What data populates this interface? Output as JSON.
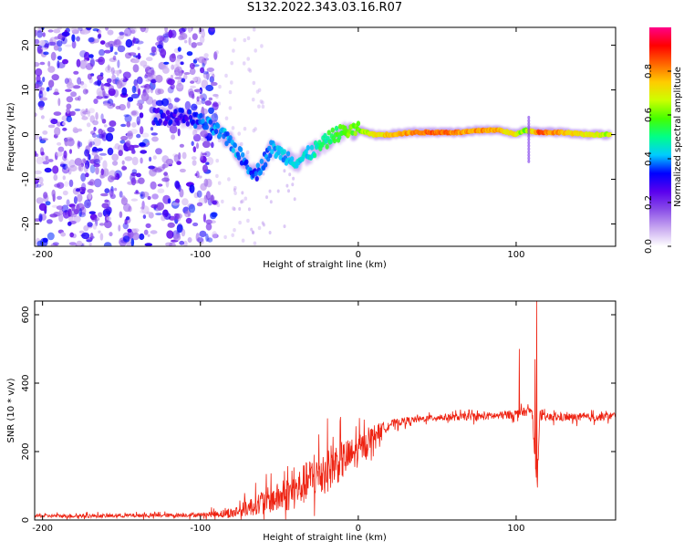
{
  "figure_title": "S132.2022.343.03.16.R07",
  "colors": {
    "snr_line": "#ee2211",
    "background": "#ffffff",
    "axis": "#000000"
  },
  "chart_data": [
    {
      "type": "heatmap",
      "title": "S132.2022.343.03.16.R07",
      "xlabel": "Height of straight line (km)",
      "ylabel": "Frequency (Hz)",
      "xlim": [
        -205,
        163
      ],
      "ylim": [
        -25,
        24
      ],
      "xticks": [
        -200,
        -100,
        0,
        100
      ],
      "yticks": [
        -20,
        -10,
        0,
        10,
        20
      ],
      "colorbar": {
        "label": "Normalized spectral amplitude",
        "range": [
          0,
          1
        ],
        "ticks": [
          0.0,
          0.2,
          0.4,
          0.6,
          0.8
        ],
        "colormap": [
          "#ffffff",
          "#c8a8f0",
          "#8a4ee8",
          "#5a00ee",
          "#0000ff",
          "#00ccff",
          "#00ff88",
          "#44ff00",
          "#ccff00",
          "#ffcc00",
          "#ff6600",
          "#ff0000",
          "#ff0088"
        ]
      },
      "ridge": [
        {
          "x": -130,
          "y": 4,
          "a": 0.3
        },
        {
          "x": -120,
          "y": 4,
          "a": 0.3
        },
        {
          "x": -110,
          "y": 4,
          "a": 0.3
        },
        {
          "x": -100,
          "y": 3,
          "a": 0.35
        },
        {
          "x": -90,
          "y": 1,
          "a": 0.4
        },
        {
          "x": -80,
          "y": -2,
          "a": 0.4
        },
        {
          "x": -72,
          "y": -6,
          "a": 0.38
        },
        {
          "x": -65,
          "y": -9,
          "a": 0.35
        },
        {
          "x": -55,
          "y": -3,
          "a": 0.4
        },
        {
          "x": -45,
          "y": -5,
          "a": 0.4
        },
        {
          "x": -38,
          "y": -6,
          "a": 0.42
        },
        {
          "x": -30,
          "y": -4,
          "a": 0.45
        },
        {
          "x": -22,
          "y": -2,
          "a": 0.5
        },
        {
          "x": -15,
          "y": 0,
          "a": 0.55
        },
        {
          "x": -5,
          "y": 1,
          "a": 0.6
        },
        {
          "x": 0,
          "y": 1,
          "a": 0.6
        },
        {
          "x": 10,
          "y": 0,
          "a": 0.7
        },
        {
          "x": 20,
          "y": 0,
          "a": 0.75
        },
        {
          "x": 35,
          "y": 0.5,
          "a": 0.8
        },
        {
          "x": 50,
          "y": 0.5,
          "a": 0.85
        },
        {
          "x": 65,
          "y": 0.5,
          "a": 0.8
        },
        {
          "x": 80,
          "y": 1,
          "a": 0.8
        },
        {
          "x": 90,
          "y": 1,
          "a": 0.75
        },
        {
          "x": 100,
          "y": 0,
          "a": 0.7
        },
        {
          "x": 105,
          "y": 1,
          "a": 0.6
        },
        {
          "x": 115,
          "y": 0.5,
          "a": 0.85
        },
        {
          "x": 130,
          "y": 0.5,
          "a": 0.75
        },
        {
          "x": 145,
          "y": 0,
          "a": 0.7
        },
        {
          "x": 160,
          "y": 0,
          "a": 0.65
        }
      ]
    },
    {
      "type": "line",
      "xlabel": "Height of straight line (km)",
      "ylabel": "SNR (10 * v/v)",
      "xlim": [
        -205,
        163
      ],
      "ylim": [
        0,
        640
      ],
      "xticks": [
        -200,
        -100,
        0,
        100
      ],
      "yticks": [
        0,
        200,
        400,
        600
      ],
      "series": [
        {
          "name": "SNR",
          "x": [
            -205,
            -190,
            -175,
            -160,
            -145,
            -130,
            -115,
            -100,
            -90,
            -80,
            -70,
            -60,
            -50,
            -40,
            -30,
            -20,
            -10,
            0,
            10,
            20,
            30,
            40,
            50,
            60,
            70,
            80,
            90,
            100,
            105,
            110,
            113,
            115,
            120,
            130,
            140,
            150,
            163
          ],
          "values": [
            12,
            12,
            12,
            12,
            13,
            13,
            14,
            15,
            18,
            20,
            35,
            55,
            65,
            85,
            120,
            150,
            175,
            200,
            250,
            280,
            290,
            295,
            300,
            300,
            302,
            303,
            305,
            310,
            315,
            320,
            100,
            300,
            300,
            300,
            300,
            300,
            305
          ]
        }
      ],
      "noise": [
        {
          "x": -205,
          "amp": 10
        },
        {
          "x": -100,
          "amp": 12
        },
        {
          "x": -80,
          "amp": 30
        },
        {
          "x": -60,
          "amp": 70
        },
        {
          "x": -40,
          "amp": 110
        },
        {
          "x": -20,
          "amp": 140
        },
        {
          "x": 0,
          "amp": 90
        },
        {
          "x": 20,
          "amp": 25
        },
        {
          "x": 40,
          "amp": 18
        },
        {
          "x": 100,
          "amp": 25
        },
        {
          "x": 163,
          "amp": 22
        }
      ],
      "spikes": [
        {
          "x": 102,
          "value": 500
        },
        {
          "x": 112,
          "value": 470
        },
        {
          "x": 113,
          "value": 640
        },
        {
          "x": 113.5,
          "value": 95
        }
      ]
    }
  ]
}
